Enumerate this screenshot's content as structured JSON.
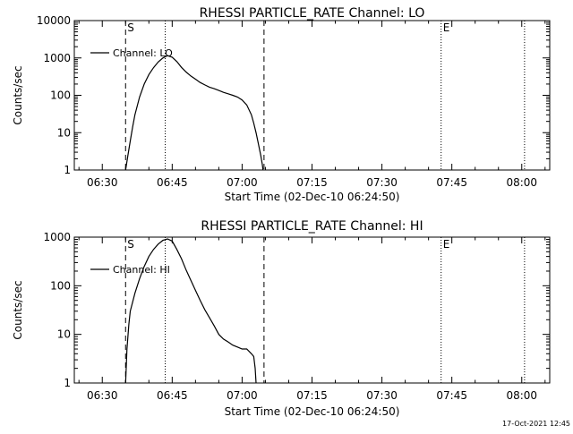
{
  "footer": {
    "timestamp": "17-Oct-2021 12:45"
  },
  "chart_data": [
    {
      "type": "line",
      "title": "RHESSI PARTICLE_RATE Channel: LO",
      "xlabel": "Start Time (02-Dec-10 06:24:50)",
      "ylabel": "Counts/sec",
      "yscale": "log",
      "ylim": [
        1,
        10000
      ],
      "xlim": [
        "06:24",
        "08:06"
      ],
      "xticks": [
        "06:30",
        "06:45",
        "07:00",
        "07:15",
        "07:30",
        "07:45",
        "08:00"
      ],
      "yticks": [
        "1",
        "10",
        "100",
        "1000",
        "10000"
      ],
      "legend": {
        "position": "top-left",
        "label": "Channel: LO"
      },
      "markers": [
        {
          "time": "06:35",
          "style": "dashed",
          "label": "S"
        },
        {
          "time": "06:43.5",
          "style": "dotted",
          "label": ""
        },
        {
          "time": "07:04.7",
          "style": "dashed",
          "label": ""
        },
        {
          "time": "07:42.7",
          "style": "dotted",
          "label": "E"
        },
        {
          "time": "08:00.6",
          "style": "dotted",
          "label": ""
        }
      ],
      "series": [
        {
          "name": "Channel: LO",
          "x": [
            "06:35.0",
            "06:35.5",
            "06:36.0",
            "06:36.5",
            "06:37.0",
            "06:38.0",
            "06:39.0",
            "06:40.0",
            "06:41.0",
            "06:42.0",
            "06:43.0",
            "06:44.0",
            "06:45.0",
            "06:46.0",
            "06:47.0",
            "06:48.0",
            "06:49.0",
            "06:50.0",
            "06:51.0",
            "06:52.0",
            "06:53.0",
            "06:54.0",
            "06:55.0",
            "06:56.0",
            "06:57.0",
            "06:58.0",
            "06:59.0",
            "07:00.0",
            "07:01.0",
            "07:02.0",
            "07:02.5",
            "07:03.0",
            "07:03.5",
            "07:04.0",
            "07:04.3",
            "07:04.5"
          ],
          "y": [
            1,
            2.5,
            6,
            14,
            30,
            90,
            200,
            360,
            550,
            780,
            1000,
            1150,
            1050,
            800,
            560,
            420,
            330,
            270,
            220,
            190,
            165,
            150,
            135,
            120,
            110,
            100,
            90,
            75,
            55,
            30,
            18,
            10,
            5,
            2.5,
            1.5,
            1
          ]
        }
      ]
    },
    {
      "type": "line",
      "title": "RHESSI PARTICLE_RATE Channel: HI",
      "xlabel": "Start Time (02-Dec-10 06:24:50)",
      "ylabel": "Counts/sec",
      "yscale": "log",
      "ylim": [
        1,
        1000
      ],
      "xlim": [
        "06:24",
        "08:06"
      ],
      "xticks": [
        "06:30",
        "06:45",
        "07:00",
        "07:15",
        "07:30",
        "07:45",
        "08:00"
      ],
      "yticks": [
        "1",
        "10",
        "100",
        "1000"
      ],
      "legend": {
        "position": "top-left",
        "label": "Channel: HI"
      },
      "markers": [
        {
          "time": "06:35",
          "style": "dashed",
          "label": "S"
        },
        {
          "time": "06:43.5",
          "style": "dotted",
          "label": ""
        },
        {
          "time": "07:04.7",
          "style": "dashed",
          "label": ""
        },
        {
          "time": "07:42.7",
          "style": "dotted",
          "label": "E"
        },
        {
          "time": "08:00.6",
          "style": "dotted",
          "label": ""
        }
      ],
      "series": [
        {
          "name": "Channel: HI",
          "x": [
            "06:35.0",
            "06:35.3",
            "06:35.7",
            "06:36.0",
            "06:37.0",
            "06:38.0",
            "06:39.0",
            "06:40.0",
            "06:41.0",
            "06:42.0",
            "06:43.0",
            "06:44.0",
            "06:45.0",
            "06:46.0",
            "06:47.0",
            "06:48.0",
            "06:49.0",
            "06:50.0",
            "06:51.0",
            "06:52.0",
            "06:53.0",
            "06:54.0",
            "06:55.0",
            "06:56.0",
            "06:57.0",
            "06:58.0",
            "06:59.0",
            "07:00.0",
            "07:01.0",
            "07:02.0",
            "07:02.5",
            "07:02.8",
            "07:03.0"
          ],
          "y": [
            1,
            5,
            16,
            30,
            70,
            140,
            250,
            400,
            560,
            720,
            860,
            920,
            830,
            560,
            360,
            210,
            130,
            80,
            50,
            32,
            22,
            15,
            10,
            8,
            7,
            6,
            5.5,
            5,
            5,
            4,
            3.5,
            2,
            1
          ]
        }
      ]
    }
  ]
}
